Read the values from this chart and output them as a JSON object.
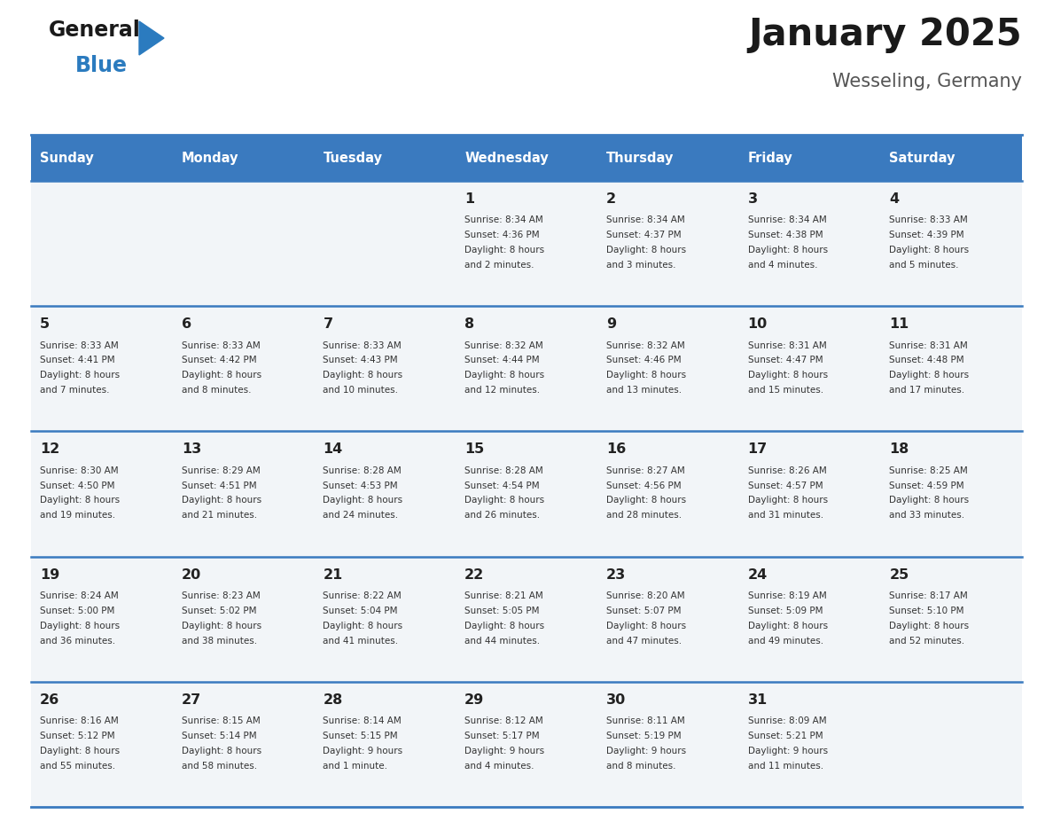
{
  "title": "January 2025",
  "subtitle": "Wesseling, Germany",
  "header_color": "#3a7abf",
  "header_text_color": "#ffffff",
  "cell_bg_color": "#f2f5f8",
  "border_color": "#3a7abf",
  "day_names": [
    "Sunday",
    "Monday",
    "Tuesday",
    "Wednesday",
    "Thursday",
    "Friday",
    "Saturday"
  ],
  "title_color": "#1a1a1a",
  "subtitle_color": "#555555",
  "day_num_color": "#222222",
  "info_color": "#333333",
  "logo_general_color": "#1a1a1a",
  "logo_blue_color": "#2b7bbf",
  "weeks": [
    [
      {
        "day": "",
        "sunrise": "",
        "sunset": "",
        "daylight": ""
      },
      {
        "day": "",
        "sunrise": "",
        "sunset": "",
        "daylight": ""
      },
      {
        "day": "",
        "sunrise": "",
        "sunset": "",
        "daylight": ""
      },
      {
        "day": "1",
        "sunrise": "8:34 AM",
        "sunset": "4:36 PM",
        "daylight": "8 hours and 2 minutes."
      },
      {
        "day": "2",
        "sunrise": "8:34 AM",
        "sunset": "4:37 PM",
        "daylight": "8 hours and 3 minutes."
      },
      {
        "day": "3",
        "sunrise": "8:34 AM",
        "sunset": "4:38 PM",
        "daylight": "8 hours and 4 minutes."
      },
      {
        "day": "4",
        "sunrise": "8:33 AM",
        "sunset": "4:39 PM",
        "daylight": "8 hours and 5 minutes."
      }
    ],
    [
      {
        "day": "5",
        "sunrise": "8:33 AM",
        "sunset": "4:41 PM",
        "daylight": "8 hours and 7 minutes."
      },
      {
        "day": "6",
        "sunrise": "8:33 AM",
        "sunset": "4:42 PM",
        "daylight": "8 hours and 8 minutes."
      },
      {
        "day": "7",
        "sunrise": "8:33 AM",
        "sunset": "4:43 PM",
        "daylight": "8 hours and 10 minutes."
      },
      {
        "day": "8",
        "sunrise": "8:32 AM",
        "sunset": "4:44 PM",
        "daylight": "8 hours and 12 minutes."
      },
      {
        "day": "9",
        "sunrise": "8:32 AM",
        "sunset": "4:46 PM",
        "daylight": "8 hours and 13 minutes."
      },
      {
        "day": "10",
        "sunrise": "8:31 AM",
        "sunset": "4:47 PM",
        "daylight": "8 hours and 15 minutes."
      },
      {
        "day": "11",
        "sunrise": "8:31 AM",
        "sunset": "4:48 PM",
        "daylight": "8 hours and 17 minutes."
      }
    ],
    [
      {
        "day": "12",
        "sunrise": "8:30 AM",
        "sunset": "4:50 PM",
        "daylight": "8 hours and 19 minutes."
      },
      {
        "day": "13",
        "sunrise": "8:29 AM",
        "sunset": "4:51 PM",
        "daylight": "8 hours and 21 minutes."
      },
      {
        "day": "14",
        "sunrise": "8:28 AM",
        "sunset": "4:53 PM",
        "daylight": "8 hours and 24 minutes."
      },
      {
        "day": "15",
        "sunrise": "8:28 AM",
        "sunset": "4:54 PM",
        "daylight": "8 hours and 26 minutes."
      },
      {
        "day": "16",
        "sunrise": "8:27 AM",
        "sunset": "4:56 PM",
        "daylight": "8 hours and 28 minutes."
      },
      {
        "day": "17",
        "sunrise": "8:26 AM",
        "sunset": "4:57 PM",
        "daylight": "8 hours and 31 minutes."
      },
      {
        "day": "18",
        "sunrise": "8:25 AM",
        "sunset": "4:59 PM",
        "daylight": "8 hours and 33 minutes."
      }
    ],
    [
      {
        "day": "19",
        "sunrise": "8:24 AM",
        "sunset": "5:00 PM",
        "daylight": "8 hours and 36 minutes."
      },
      {
        "day": "20",
        "sunrise": "8:23 AM",
        "sunset": "5:02 PM",
        "daylight": "8 hours and 38 minutes."
      },
      {
        "day": "21",
        "sunrise": "8:22 AM",
        "sunset": "5:04 PM",
        "daylight": "8 hours and 41 minutes."
      },
      {
        "day": "22",
        "sunrise": "8:21 AM",
        "sunset": "5:05 PM",
        "daylight": "8 hours and 44 minutes."
      },
      {
        "day": "23",
        "sunrise": "8:20 AM",
        "sunset": "5:07 PM",
        "daylight": "8 hours and 47 minutes."
      },
      {
        "day": "24",
        "sunrise": "8:19 AM",
        "sunset": "5:09 PM",
        "daylight": "8 hours and 49 minutes."
      },
      {
        "day": "25",
        "sunrise": "8:17 AM",
        "sunset": "5:10 PM",
        "daylight": "8 hours and 52 minutes."
      }
    ],
    [
      {
        "day": "26",
        "sunrise": "8:16 AM",
        "sunset": "5:12 PM",
        "daylight": "8 hours and 55 minutes."
      },
      {
        "day": "27",
        "sunrise": "8:15 AM",
        "sunset": "5:14 PM",
        "daylight": "8 hours and 58 minutes."
      },
      {
        "day": "28",
        "sunrise": "8:14 AM",
        "sunset": "5:15 PM",
        "daylight": "9 hours and 1 minute."
      },
      {
        "day": "29",
        "sunrise": "8:12 AM",
        "sunset": "5:17 PM",
        "daylight": "9 hours and 4 minutes."
      },
      {
        "day": "30",
        "sunrise": "8:11 AM",
        "sunset": "5:19 PM",
        "daylight": "9 hours and 8 minutes."
      },
      {
        "day": "31",
        "sunrise": "8:09 AM",
        "sunset": "5:21 PM",
        "daylight": "9 hours and 11 minutes."
      },
      {
        "day": "",
        "sunrise": "",
        "sunset": "",
        "daylight": ""
      }
    ]
  ]
}
